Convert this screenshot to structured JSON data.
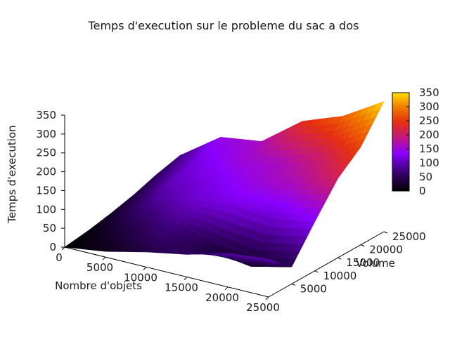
{
  "chart_data": {
    "type": "surface3d",
    "title": "Temps d'execution sur le probleme du sac a dos",
    "xlabel": "Nombre d'objets",
    "ylabel": "Volume",
    "zlabel": "Temps d'execution",
    "x_ticks": [
      "0",
      "5000",
      "10000",
      "15000",
      "20000",
      "25000"
    ],
    "y_ticks": [
      "5000",
      "10000",
      "15000",
      "20000",
      "25000"
    ],
    "z_ticks": [
      "0",
      "50",
      "100",
      "150",
      "200",
      "250",
      "300",
      "350"
    ],
    "colorbar_ticks": [
      "0",
      "50",
      "100",
      "150",
      "200",
      "250",
      "300",
      "350"
    ],
    "xlim": [
      0,
      25000
    ],
    "ylim": [
      0,
      25000
    ],
    "zlim": [
      0,
      350
    ],
    "colormap": "black-purple-red-orange-yellow",
    "grid_x": [
      0,
      5000,
      10000,
      15000,
      20000,
      25000
    ],
    "grid_y": [
      0,
      5000,
      10000,
      15000,
      20000,
      25000
    ],
    "z_values": [
      [
        0,
        8,
        20,
        35,
        55,
        70
      ],
      [
        15,
        40,
        80,
        105,
        120,
        145
      ],
      [
        40,
        75,
        110,
        125,
        150,
        160
      ],
      [
        60,
        35,
        120,
        150,
        160,
        240
      ],
      [
        90,
        20,
        110,
        165,
        200,
        280
      ],
      [
        100,
        45,
        130,
        210,
        260,
        345
      ]
    ]
  }
}
